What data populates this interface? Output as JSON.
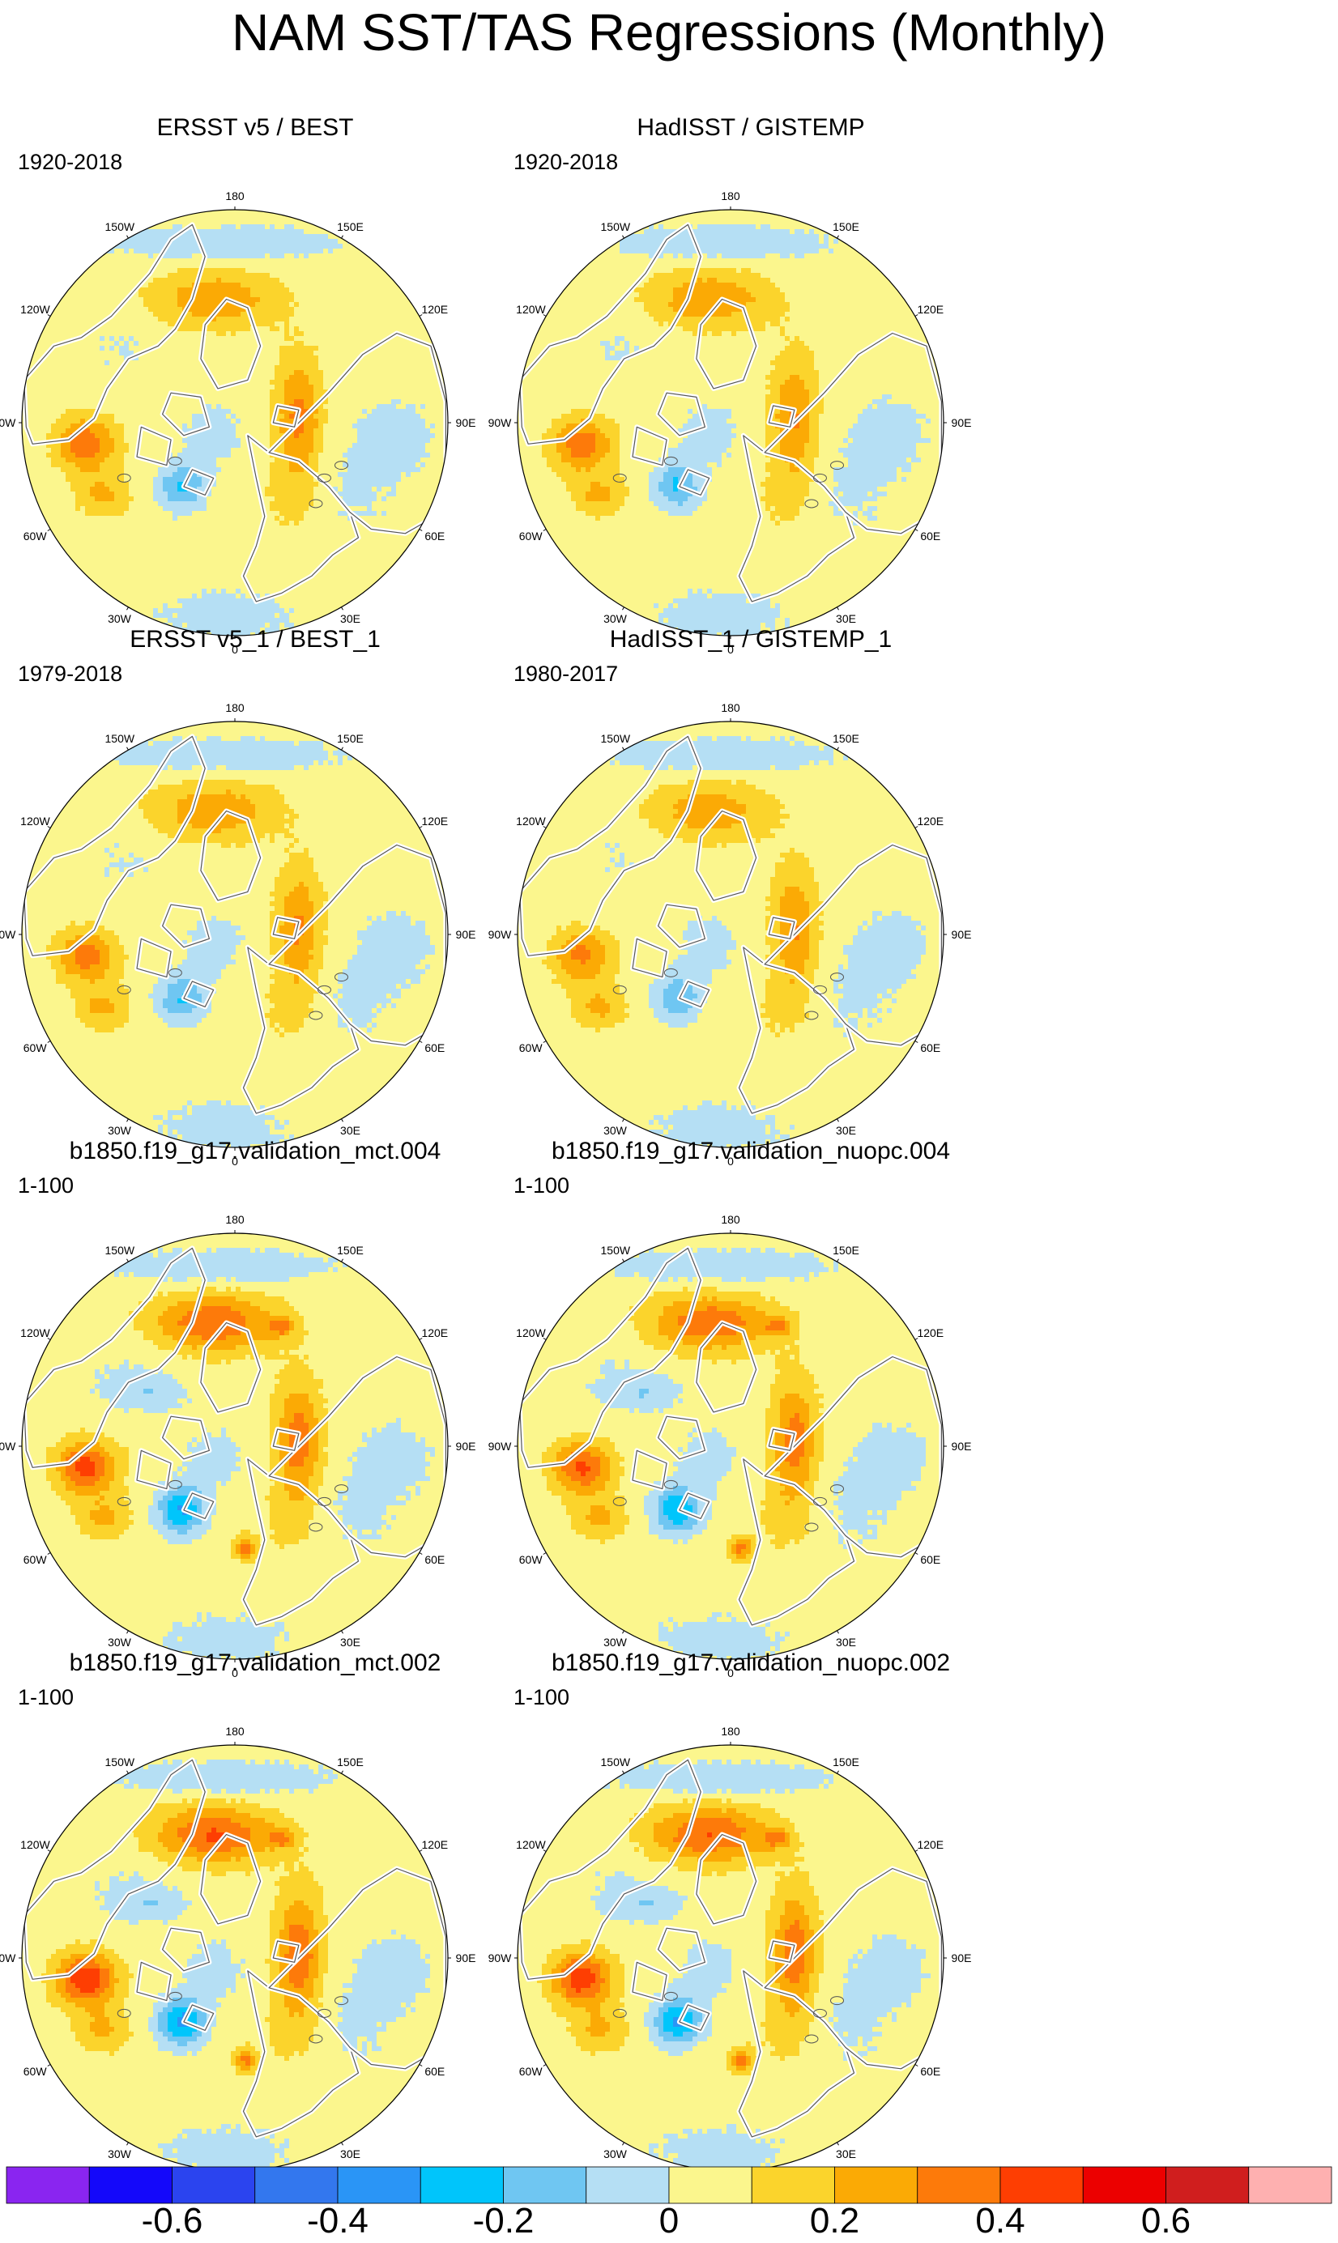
{
  "figure": {
    "title": "NAM SST/TAS Regressions (Monthly)"
  },
  "chart_data": {
    "type": "polar-map-panels",
    "variable": "SST/TAS regression on NAM index",
    "longitude_labels": [
      "180",
      "150E",
      "120E",
      "90E",
      "60E",
      "30E",
      "0",
      "30W",
      "60W",
      "90W",
      "120W",
      "150W"
    ],
    "panels": [
      {
        "title": "ERSST v5 / BEST",
        "period": "1920-2018",
        "amp": 0.22,
        "gulf": 0.38,
        "asia": 0.28,
        "peak_red": false
      },
      {
        "title": "HadISST / GISTEMP",
        "period": "1920-2018",
        "amp": 0.22,
        "gulf": 0.38,
        "asia": 0.26,
        "peak_red": false
      },
      {
        "title": "ERSST v5_1 / BEST_1",
        "period": "1979-2018",
        "amp": 0.22,
        "gulf": 0.36,
        "asia": 0.26,
        "peak_red": false
      },
      {
        "title": "HadISST_1 / GISTEMP_1",
        "period": "1980-2017",
        "amp": 0.2,
        "gulf": 0.33,
        "asia": 0.25,
        "peak_red": false
      },
      {
        "title": "b1850.f19_g17.validation_mct.004",
        "period": "1-100",
        "amp": 0.32,
        "gulf": 0.45,
        "asia": 0.31,
        "peak_red": true
      },
      {
        "title": "b1850.f19_g17.validation_nuopc.004",
        "period": "1-100",
        "amp": 0.31,
        "gulf": 0.43,
        "asia": 0.3,
        "peak_red": true
      },
      {
        "title": "b1850.f19_g17.validation_mct.002",
        "period": "1-100",
        "amp": 0.34,
        "gulf": 0.5,
        "asia": 0.33,
        "peak_red": true
      },
      {
        "title": "b1850.f19_g17.validation_nuopc.002",
        "period": "1-100",
        "amp": 0.33,
        "gulf": 0.48,
        "asia": 0.32,
        "peak_red": true
      }
    ],
    "colorbar": {
      "levels": [
        -0.7,
        -0.6,
        -0.5,
        -0.4,
        -0.3,
        -0.2,
        -0.1,
        0,
        0.1,
        0.2,
        0.3,
        0.4,
        0.5,
        0.6,
        0.7
      ],
      "colors": [
        "#8a25f0",
        "#1408fa",
        "#2b44ef",
        "#3377ee",
        "#2a95f6",
        "#00c5fb",
        "#6fc6f2",
        "#b5dff4",
        "#fbf68d",
        "#fbd42c",
        "#fbaa05",
        "#fd7a0a",
        "#fe3e02",
        "#ec0000",
        "#d01e1e",
        "#feb0b0"
      ],
      "tick_labels": [
        "-0.6",
        "-0.4",
        "-0.2",
        "0",
        "0.2",
        "0.4",
        "0.6"
      ],
      "tick_values": [
        -0.6,
        -0.4,
        -0.2,
        0,
        0.2,
        0.4,
        0.6
      ]
    }
  }
}
